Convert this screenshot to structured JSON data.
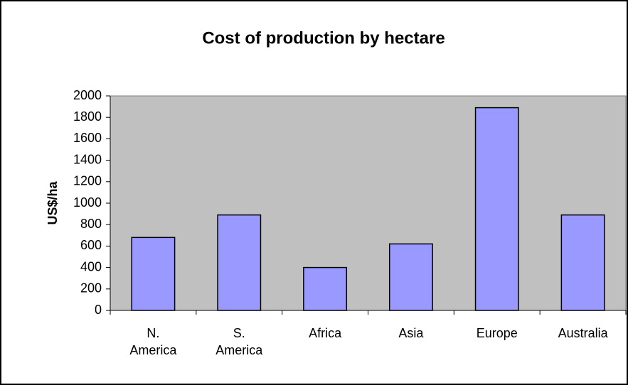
{
  "chart_data": {
    "type": "bar",
    "title": "Cost of production by hectare",
    "y_label": "US$/ha",
    "categories": [
      "N. America",
      "S. America",
      "Africa",
      "Asia",
      "Europe",
      "Australia"
    ],
    "values": [
      680,
      890,
      400,
      620,
      1890,
      890
    ],
    "color": "#9999ff",
    "plot_background": "#c0c0c0",
    "ylim": [
      0,
      2000
    ],
    "yticks": [
      0,
      200,
      400,
      600,
      800,
      1000,
      1200,
      1400,
      1600,
      1800,
      2000
    ],
    "grid": false
  }
}
